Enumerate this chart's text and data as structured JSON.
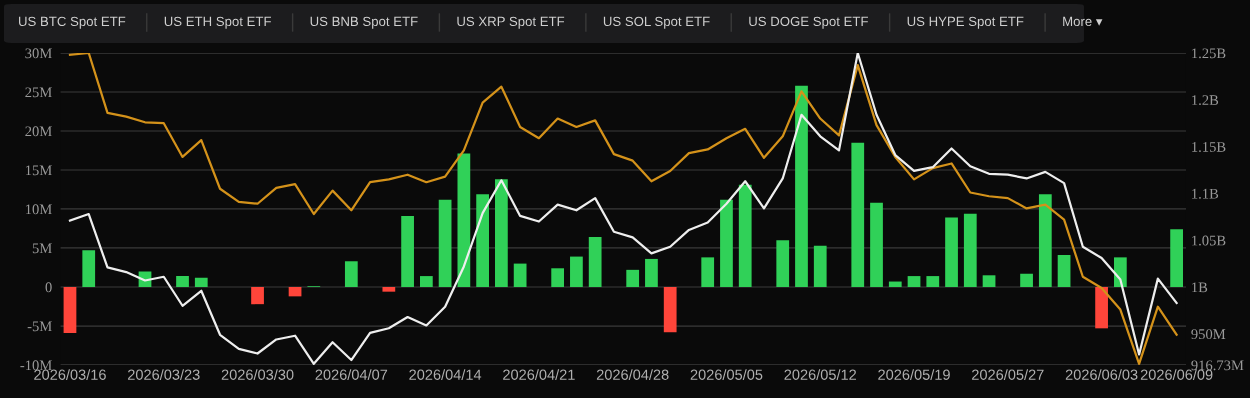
{
  "chart_data": {
    "type": "bar",
    "annotations": [
      "US BTC Spot ETF",
      "US ETH Spot ETF",
      "US BNB Spot ETF",
      "US XRP Spot ETF",
      "US SOL Spot ETF",
      "US DOGE Spot ETF",
      "US HYPE Spot ETF",
      "More ▾"
    ],
    "categories": [
      "2026/03/16",
      null,
      null,
      null,
      null,
      "2026/03/23",
      null,
      null,
      null,
      null,
      "2026/03/30",
      null,
      null,
      null,
      null,
      "2026/04/07",
      null,
      null,
      null,
      null,
      "2026/04/14",
      null,
      null,
      null,
      null,
      "2026/04/21",
      null,
      null,
      null,
      null,
      "2026/04/28",
      null,
      null,
      null,
      null,
      "2026/05/05",
      null,
      null,
      null,
      null,
      "2026/05/12",
      null,
      null,
      null,
      null,
      "2026/05/19",
      null,
      null,
      null,
      null,
      "2026/05/27",
      null,
      null,
      null,
      null,
      "2026/06/03",
      null,
      null,
      null,
      "2026/06/09"
    ],
    "series": [
      {
        "values": [
          -5.9,
          4.7,
          null,
          null,
          2.0,
          null,
          1.4,
          1.2,
          null,
          null,
          -2.2,
          null,
          -1.2,
          0.1,
          null,
          3.3,
          null,
          -0.6,
          9.1,
          1.4,
          11.2,
          17.1,
          11.9,
          13.8,
          3.0,
          null,
          2.4,
          3.9,
          6.4,
          null,
          2.2,
          3.6,
          -5.8,
          null,
          3.8,
          11.2,
          13.1,
          null,
          6.0,
          25.8,
          5.3,
          null,
          18.5,
          10.8,
          0.7,
          1.4,
          1.4,
          8.9,
          9.4,
          1.5,
          null,
          1.7,
          11.9,
          4.1,
          null,
          -5.3,
          3.8,
          null,
          null,
          7.4
        ],
        "colors": [
          "#ff453a",
          "#30d158",
          "#30d158",
          "#30d158",
          "#30d158",
          "#30d158",
          "#30d158",
          "#30d158",
          "#30d158",
          "#30d158",
          "#ff453a",
          "#30d158",
          "#ff453a",
          "#30d158",
          "#30d158",
          "#30d158",
          "#30d158",
          "#ff453a",
          "#30d158",
          "#30d158",
          "#30d158",
          "#30d158",
          "#30d158",
          "#30d158",
          "#30d158",
          "#30d158",
          "#30d158",
          "#30d158",
          "#30d158",
          "#30d158",
          "#30d158",
          "#30d158",
          "#ff453a",
          "#30d158",
          "#30d158",
          "#30d158",
          "#30d158",
          "#30d158",
          "#30d158",
          "#30d158",
          "#30d158",
          "#30d158",
          "#30d158",
          "#30d158",
          "#30d158",
          "#30d158",
          "#30d158",
          "#30d158",
          "#30d158",
          "#30d158",
          "#30d158",
          "#30d158",
          "#30d158",
          "#30d158",
          "#30d158",
          "#ff453a",
          "#30d158",
          "#30d158",
          "#30d158",
          "#30d158"
        ]
      },
      {
        "type": "line",
        "axis": "y2",
        "color": "#d4921a",
        "values": [
          1248000000.0,
          1250000000.0,
          1186000000.0,
          1182000000.0,
          1176000000.0,
          1175000000.0,
          1139000000.0,
          1157000000.0,
          1105000000.0,
          1091000000.0,
          1089000000.0,
          1106000000.0,
          1110000000.0,
          1078000000.0,
          1103000000.0,
          1082000000.0,
          1112000000.0,
          1115000000.0,
          1120000000.0,
          1112000000.0,
          1118000000.0,
          1146000000.0,
          1197000000.0,
          1214000000.0,
          1171000000.0,
          1159000000.0,
          1180000000.0,
          1171000000.0,
          1178000000.0,
          1142000000.0,
          1135000000.0,
          1113000000.0,
          1124000000.0,
          1143000000.0,
          1147000000.0,
          1159000000.0,
          1169000000.0,
          1138000000.0,
          1161000000.0,
          1209000000.0,
          1180000000.0,
          1162000000.0,
          1237000000.0,
          1173000000.0,
          1139000000.0,
          1115000000.0,
          1127000000.0,
          1132000000.0,
          1101000000.0,
          1097000000.0,
          1095000000.0,
          1084000000.0,
          1088000000.0,
          1072000000.0,
          1011000000.0,
          999000000.0,
          976000000.0,
          918000000.0,
          979000000.0,
          949000000.0
        ]
      },
      {
        "type": "line",
        "axis": "y2",
        "color": "#eeeeee",
        "values": [
          1071000000.0,
          1078000000.0,
          1021000000.0,
          1016000000.0,
          1007000000.0,
          1011000000.0,
          980000000.0,
          996000000.0,
          949000000.0,
          934000000.0,
          929000000.0,
          944000000.0,
          948000000.0,
          918000000.0,
          941000000.0,
          922000000.0,
          951000000.0,
          956000000.0,
          968000000.0,
          959000000.0,
          979000000.0,
          1022000000.0,
          1079000000.0,
          1114000000.0,
          1076000000.0,
          1070000000.0,
          1088000000.0,
          1082000000.0,
          1095000000.0,
          1059000000.0,
          1053000000.0,
          1036000000.0,
          1043000000.0,
          1061000000.0,
          1069000000.0,
          1089000000.0,
          1113000000.0,
          1084000000.0,
          1116000000.0,
          1184000000.0,
          1161000000.0,
          1146000000.0,
          1250000000.0,
          1184000000.0,
          1141000000.0,
          1124000000.0,
          1128000000.0,
          1148000000.0,
          1129000000.0,
          1121000000.0,
          1120000000.0,
          1116000000.0,
          1123000000.0,
          1111000000.0,
          1043000000.0,
          1031000000.0,
          1008000000.0,
          928000000.0,
          1009000000.0,
          983000000.0
        ]
      }
    ],
    "ylim": [
      -10,
      30
    ],
    "yticks": [
      {
        "value": -10,
        "label": "-10M"
      },
      {
        "value": -5,
        "label": "-5M"
      },
      0,
      {
        "value": 5,
        "label": "5M"
      },
      {
        "value": 10,
        "label": "10M"
      },
      {
        "value": 15,
        "label": "15M"
      },
      {
        "value": 20,
        "label": "20M"
      },
      {
        "value": 25,
        "label": "25M"
      },
      {
        "value": 30,
        "label": "30M"
      }
    ],
    "y2lim": [
      916730000,
      1250000000
    ],
    "y2ticks": [
      {
        "value": 916730000,
        "label": "916.73M"
      },
      {
        "value": 950000000,
        "label": "950M"
      },
      {
        "value": 1000000000,
        "label": "1B"
      },
      {
        "value": 1050000000,
        "label": "1.05B"
      },
      {
        "value": 1100000000,
        "label": "1.1B"
      },
      {
        "value": 1150000000,
        "label": "1.15B"
      },
      {
        "value": 1200000000,
        "label": "1.2B"
      },
      {
        "value": 1250000000,
        "label": "1.25B"
      }
    ],
    "grid": "y",
    "marker": "none",
    "line_style": "solid"
  }
}
